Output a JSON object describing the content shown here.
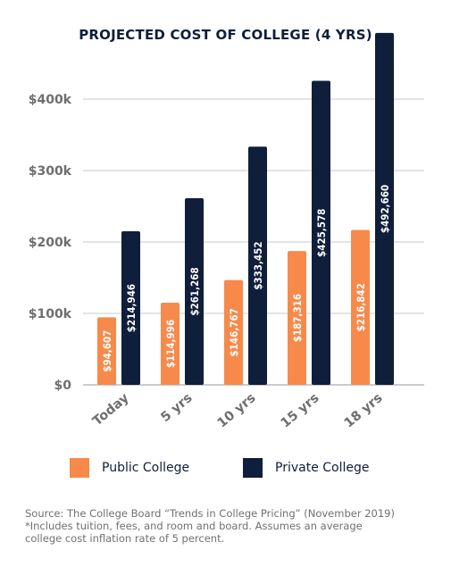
{
  "colors": {
    "public": "#f7894b",
    "private": "#0f1e3a",
    "grid": "#c8c8c8",
    "axis_text": "#6e6e6e",
    "bar_label": "#ffffff"
  },
  "chart_data": {
    "type": "bar",
    "title": "PROJECTED COST OF COLLEGE (4 YRS)",
    "categories": [
      "Today",
      "5 yrs",
      "10 yrs",
      "15 yrs",
      "18 yrs"
    ],
    "series": [
      {
        "name": "Public College",
        "values": [
          94607,
          114996,
          146767,
          187316,
          216842
        ],
        "labels": [
          "$94,607",
          "$114,996",
          "$146,767",
          "$187,316",
          "$216,842"
        ]
      },
      {
        "name": "Private College",
        "values": [
          214946,
          261268,
          333452,
          425578,
          492660
        ],
        "labels": [
          "$214,946",
          "$261,268",
          "$333,452",
          "$425,578",
          "$492,660"
        ]
      }
    ],
    "ylim": [
      0,
      500000
    ],
    "yticks": [
      0,
      100000,
      200000,
      300000,
      400000
    ],
    "ytick_labels": [
      "$0",
      "$100k",
      "$200k",
      "$300k",
      "$400k"
    ],
    "grid": true,
    "legend": "bottom"
  },
  "footnote": {
    "line1": "Source: The College Board “Trends in College Pricing” (November 2019)",
    "line2": "*Includes tuition, fees, and room and board. Assumes an average",
    "line3": "college cost inflation rate of 5 percent."
  }
}
